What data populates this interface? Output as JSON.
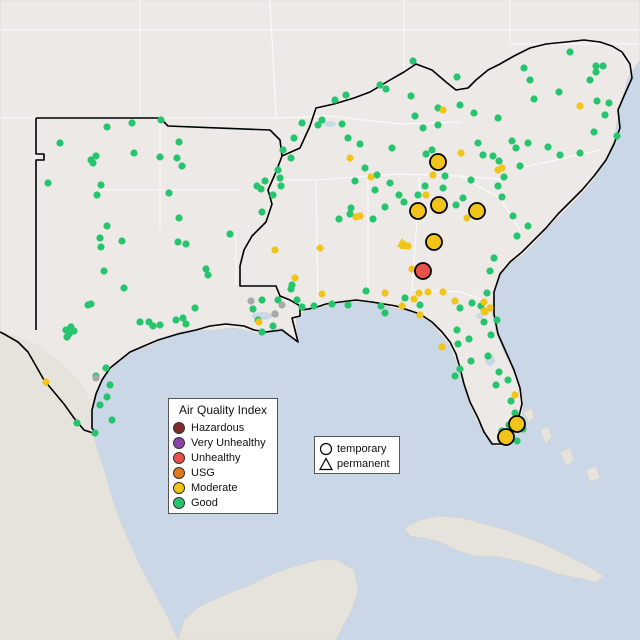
{
  "map": {
    "colors": {
      "ocean": "#c9d7e6",
      "land": "#ece9e6",
      "land_south": "#e6e2dc",
      "region_border": "#000000",
      "state_border": "#ffffff",
      "hazardous": "#7e2b2b",
      "very_unhealthy": "#8b44a6",
      "unhealthy": "#e8524a",
      "usg": "#e07a1b",
      "moderate": "#f0c419",
      "good": "#27c46e",
      "no_data": "#a9a9a9"
    },
    "monitors": [
      {
        "id": "large-1",
        "category": "moderate",
        "size": "large",
        "kind": "temporary"
      },
      {
        "id": "large-2",
        "category": "moderate",
        "size": "large",
        "kind": "temporary"
      },
      {
        "id": "large-3",
        "category": "moderate",
        "size": "large",
        "kind": "temporary"
      },
      {
        "id": "large-4",
        "category": "moderate",
        "size": "large",
        "kind": "temporary"
      },
      {
        "id": "large-5",
        "category": "moderate",
        "size": "large",
        "kind": "temporary"
      },
      {
        "id": "large-6",
        "category": "unhealthy",
        "size": "large",
        "kind": "temporary"
      },
      {
        "id": "large-7",
        "category": "moderate",
        "size": "large",
        "kind": "temporary"
      },
      {
        "id": "large-8",
        "category": "moderate",
        "size": "large",
        "kind": "temporary"
      }
    ]
  },
  "legend": {
    "title": "Air Quality Index",
    "items": [
      {
        "label": "Hazardous",
        "color": "#7e2b2b"
      },
      {
        "label": "Very Unhealthy",
        "color": "#8b44a6"
      },
      {
        "label": "Unhealthy",
        "color": "#e8524a"
      },
      {
        "label": "USG",
        "color": "#e07a1b"
      },
      {
        "label": "Moderate",
        "color": "#f0c419"
      },
      {
        "label": "Good",
        "color": "#27c46e"
      }
    ]
  },
  "shape_legend": {
    "temporary": "temporary",
    "permanent": "permanent",
    "temporary_icon": "circle-icon",
    "permanent_icon": "triangle-icon"
  }
}
